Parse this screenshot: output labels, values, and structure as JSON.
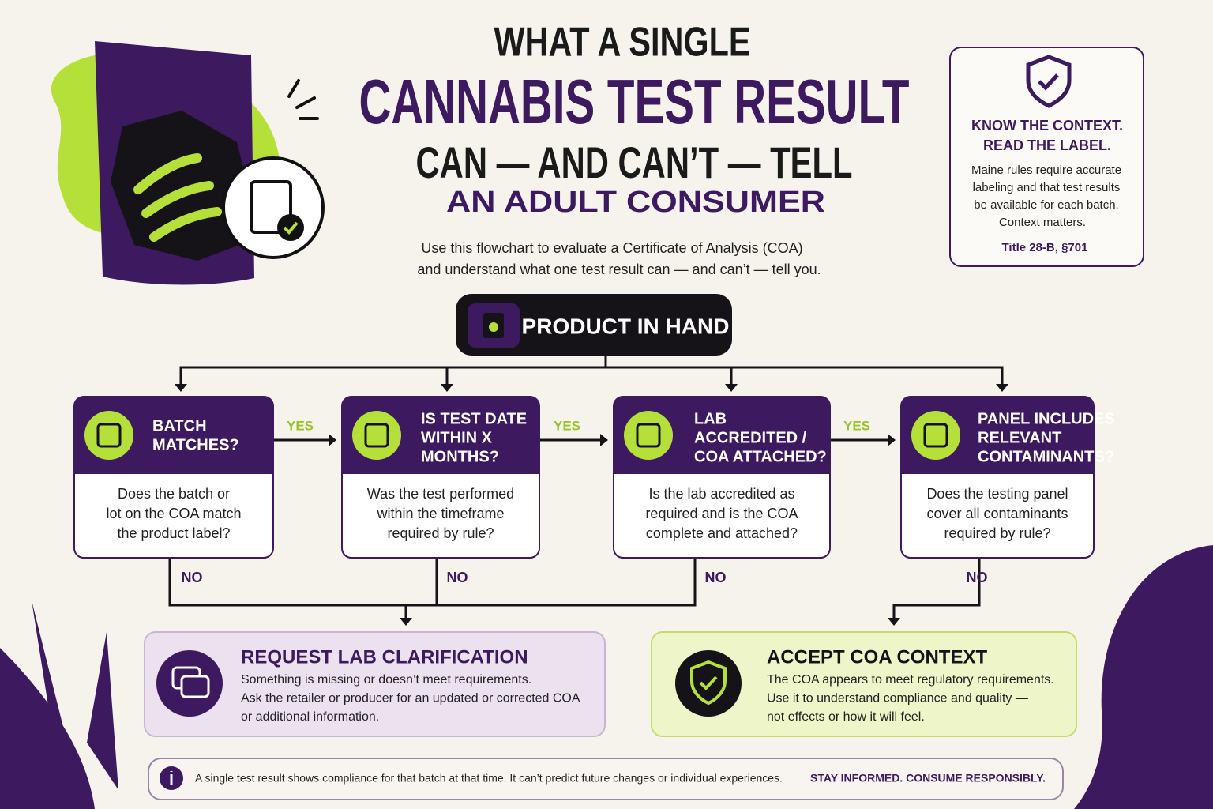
{
  "header": {
    "title_lines": [
      "WHAT A SINGLE",
      "CANNABIS TEST RESULT",
      "CAN — AND CAN’T — TELL",
      "AN ADULT CONSUMER"
    ],
    "intro": [
      "Use this flowchart to evaluate a Certificate of Analysis (COA)",
      "and understand what one test result can — and can’t — tell you."
    ]
  },
  "context_box": {
    "title": [
      "KNOW THE CONTEXT.",
      "READ THE LABEL."
    ],
    "body": [
      "Maine rules require accurate",
      "labeling and that test results",
      "be available for each batch.",
      "Context matters."
    ],
    "citation": "Title 28-B, §701"
  },
  "start": {
    "label": "PRODUCT IN HAND"
  },
  "nodes": [
    {
      "title": [
        "BATCH",
        "MATCHES?"
      ],
      "body": [
        "Does the batch or",
        "lot on the COA match",
        "the product label?"
      ]
    },
    {
      "title": [
        "IS TEST DATE",
        "WITHIN X",
        "MONTHS?"
      ],
      "body": [
        "Was the test performed",
        "within the timeframe",
        "required by rule?"
      ]
    },
    {
      "title": [
        "LAB",
        "ACCREDITED /",
        "COA ATTACHED?"
      ],
      "body": [
        "Is the lab accredited as",
        "required and is the COA",
        "complete and attached?"
      ]
    },
    {
      "title": [
        "PANEL INCLUDES",
        "RELEVANT",
        "CONTAMINANTS?"
      ],
      "body": [
        "Does the testing panel",
        "cover all contaminants",
        "required by rule?"
      ]
    }
  ],
  "yes_labels": [
    "YES",
    "YES",
    "YES"
  ],
  "no_labels": [
    "NO",
    "NO",
    "NO",
    "NO"
  ],
  "outcomes": [
    {
      "title": "REQUEST LAB CLARIFICATION",
      "body": [
        "Something is missing or doesn’t meet requirements.",
        "Ask the retailer or producer for an updated or corrected COA",
        "or additional information."
      ]
    },
    {
      "title": "ACCEPT COA CONTEXT",
      "body": [
        "The COA appears to meet regulatory requirements.",
        "Use it to understand compliance and quality —",
        "not effects or how it will feel."
      ]
    }
  ],
  "footer": {
    "note": "A single test result shows compliance for that batch at that time. It can’t predict future changes or individual experiences.",
    "tagline": "STAY INFORMED. CONSUME RESPONSIBLY."
  }
}
